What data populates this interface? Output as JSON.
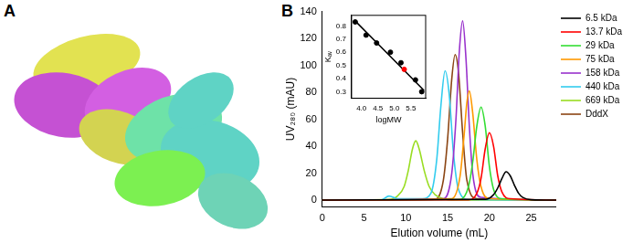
{
  "panel_labels": [
    "A",
    "B"
  ],
  "chart_data": [
    {
      "type": "line",
      "x_label": "Elution volume (mL)",
      "y_label": "UV₂₈₀ (mAU)",
      "xlim": [
        0,
        28
      ],
      "xticks": [
        0,
        5,
        10,
        15,
        20,
        25
      ],
      "ylim": [
        -5,
        140
      ],
      "yticks": [
        0,
        20,
        40,
        60,
        80,
        100,
        120,
        140
      ],
      "grid": false,
      "legend": "right",
      "series": [
        {
          "name": "6.5 kDa",
          "color": "#000000",
          "x": [
            0,
            19.5,
            20.5,
            21,
            21.5,
            22,
            22.5,
            23,
            23.5,
            24,
            25,
            28
          ],
          "values": [
            0,
            0.5,
            4,
            9,
            16,
            21,
            18,
            11,
            5,
            2,
            0.3,
            0
          ]
        },
        {
          "name": "13.7 kDa",
          "color": "#ff0000",
          "x": [
            0,
            17.5,
            18.5,
            19,
            19.5,
            20,
            20.5,
            21,
            21.5,
            22.5,
            28
          ],
          "values": [
            0,
            0.3,
            5,
            16,
            38,
            50,
            40,
            18,
            6,
            1,
            0
          ]
        },
        {
          "name": "29 kDa",
          "color": "#33dd33",
          "x": [
            0,
            16.5,
            17.5,
            18,
            18.5,
            19,
            19.5,
            20,
            20.5,
            21.5,
            28
          ],
          "values": [
            0,
            0.5,
            10,
            28,
            55,
            69,
            55,
            25,
            8,
            1,
            0
          ]
        },
        {
          "name": "75 kDa",
          "color": "#ff9900",
          "x": [
            0,
            15.5,
            16.5,
            17,
            17.3,
            17.6,
            18,
            18.5,
            19,
            20,
            28
          ],
          "values": [
            0,
            1,
            18,
            50,
            72,
            81,
            65,
            30,
            10,
            1,
            0
          ]
        },
        {
          "name": "158 kDa",
          "color": "#9933cc",
          "x": [
            0,
            14.5,
            15.5,
            16,
            16.4,
            16.8,
            17.2,
            17.6,
            18,
            19,
            28
          ],
          "values": [
            0,
            1,
            20,
            60,
            110,
            133,
            105,
            55,
            20,
            2,
            0
          ]
        },
        {
          "name": "440 kDa",
          "color": "#33ccee",
          "x": [
            0,
            7,
            8,
            9,
            12,
            13,
            13.7,
            14.2,
            14.7,
            15.2,
            15.7,
            16.3,
            17.5,
            28
          ],
          "values": [
            0,
            0,
            3,
            1,
            1,
            5,
            30,
            70,
            96,
            78,
            35,
            8,
            0.5,
            0
          ]
        },
        {
          "name": "669 kDa",
          "color": "#99dd22",
          "x": [
            0,
            8,
            9,
            9.8,
            10.3,
            10.8,
            11.2,
            11.6,
            12.2,
            12.8,
            13.5,
            14.5,
            16,
            28
          ],
          "values": [
            0,
            0.5,
            3,
            10,
            22,
            38,
            44,
            38,
            22,
            10,
            4,
            1,
            0,
            0
          ]
        },
        {
          "name": "DddX",
          "color": "#8b4513",
          "x": [
            0,
            13.5,
            14.5,
            15,
            15.5,
            15.9,
            16.3,
            16.8,
            17.3,
            18.5,
            28
          ],
          "values": [
            0,
            0.5,
            15,
            45,
            90,
            108,
            95,
            50,
            15,
            1,
            0
          ]
        }
      ]
    },
    {
      "type": "scatter",
      "x_label": "logMW",
      "y_label": "Kₐᵥ",
      "xlim": [
        3.7,
        5.95
      ],
      "xticks": [
        {
          "value": 4,
          "label": "4.0"
        },
        {
          "value": 4.5,
          "label": "4.5"
        },
        {
          "value": 5,
          "label": "5.0"
        },
        {
          "value": 5.5,
          "label": "5.5"
        }
      ],
      "ylim": [
        0.25,
        0.88
      ],
      "yticks": [
        0.3,
        0.4,
        0.5,
        0.6,
        0.7,
        0.8
      ],
      "grid": false,
      "series": [
        {
          "type": "scatter",
          "marker": "circle",
          "x": [
            3.81,
            4.14,
            4.46,
            4.88,
            5.2,
            5.64,
            5.83,
            5.3
          ],
          "values": [
            0.83,
            0.73,
            0.67,
            0.6,
            0.52,
            0.39,
            0.3,
            0.47
          ],
          "colors": [
            "#000000",
            "#000000",
            "#000000",
            "#000000",
            "#000000",
            "#000000",
            "#000000",
            "#ff0000"
          ]
        },
        {
          "type": "line",
          "color": "#000000",
          "x": [
            3.8,
            5.9
          ],
          "values": [
            0.84,
            0.31
          ]
        }
      ]
    }
  ]
}
